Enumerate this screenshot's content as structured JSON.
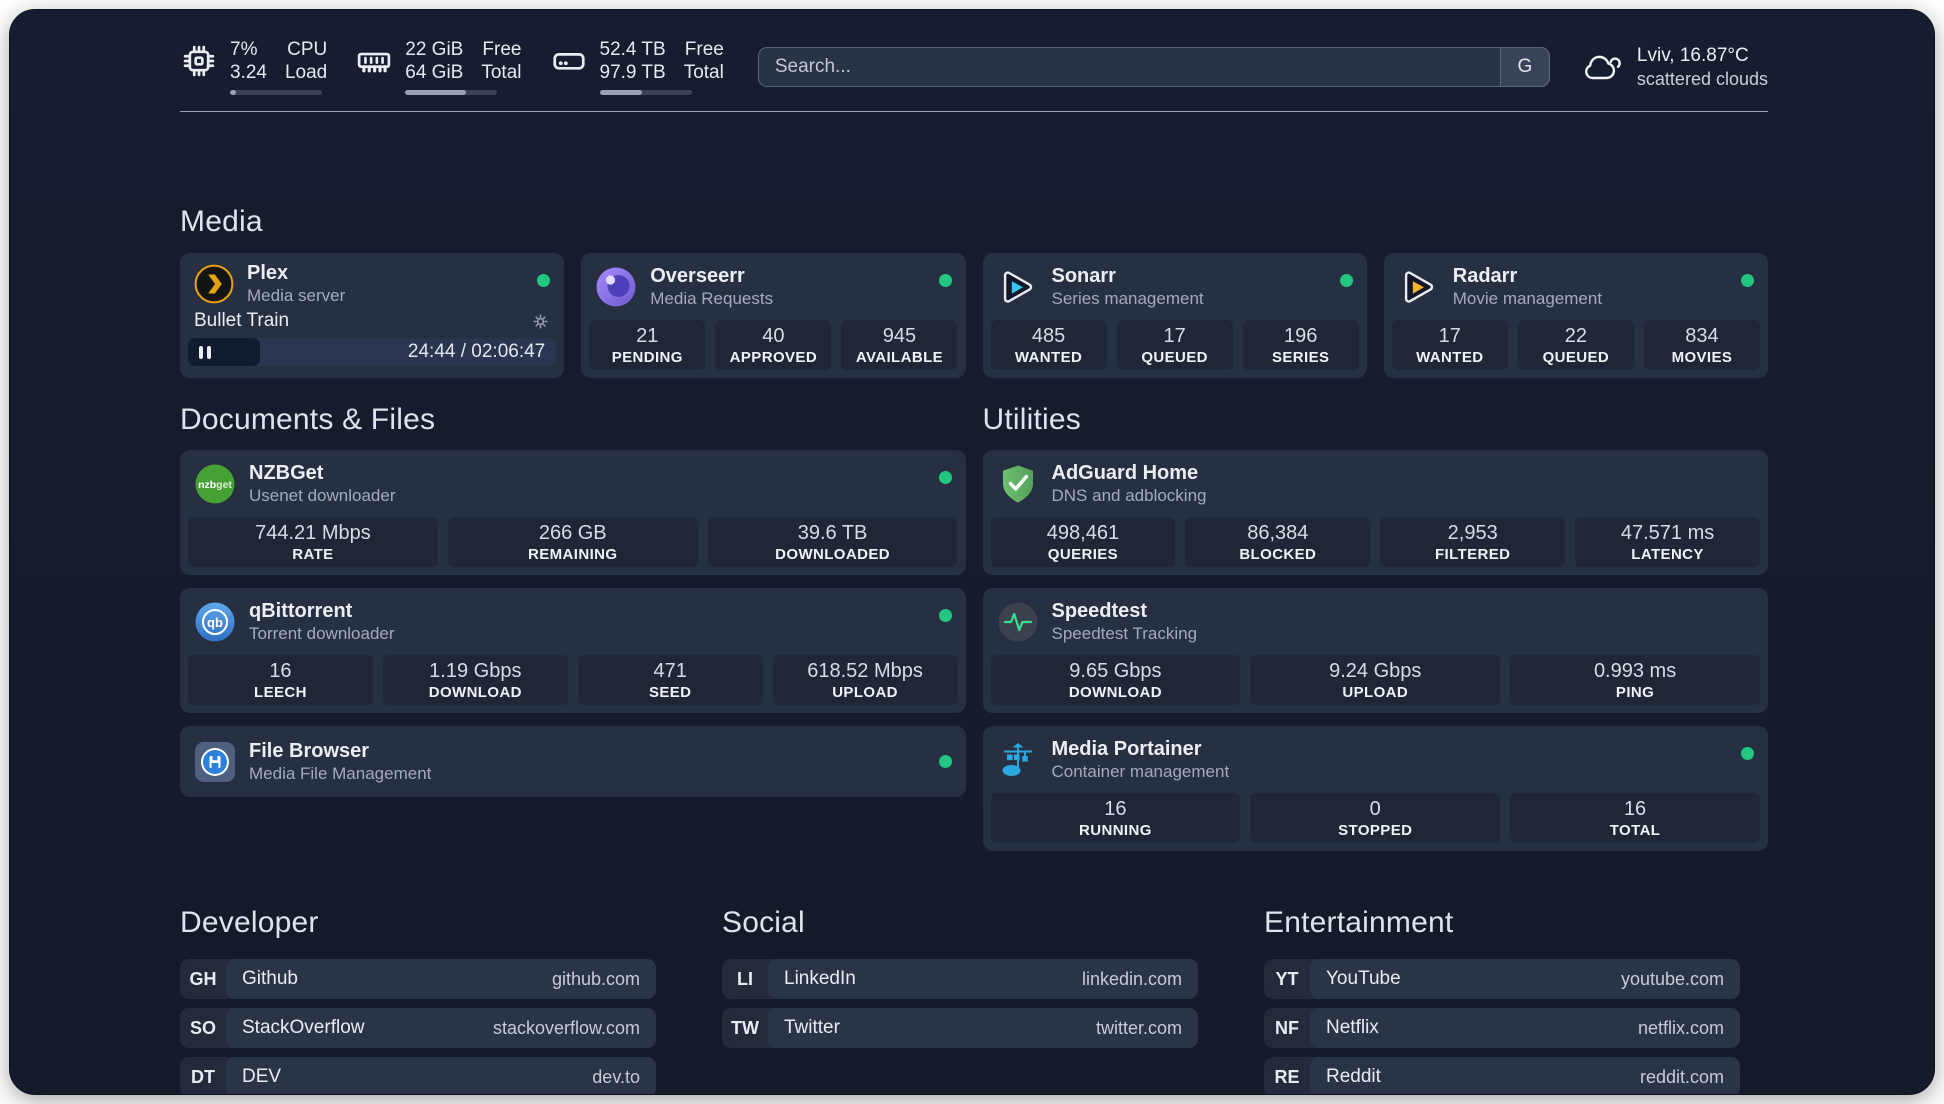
{
  "colors": {
    "page_background": "#151B2B",
    "card_background": "#272F42",
    "stat_box_background": "#1F2636",
    "status_green": "#21C77F",
    "plex_gold": "#E5A00D",
    "sonarr_blue": "#38C6F4",
    "radarr_gold": "#F5B42C",
    "portainer_blue": "#2AA9E0",
    "speedtest_pulse_green": "#35E08E"
  },
  "header": {
    "resources": [
      {
        "icon": "cpu-icon",
        "value_top": "7%",
        "value_bottom": "3.24",
        "label_top": "CPU",
        "label_bottom": "Load",
        "progress_percent": 7
      },
      {
        "icon": "memory-icon",
        "value_top": "22 GiB",
        "value_bottom": "64 GiB",
        "label_top": "Free",
        "label_bottom": "Total",
        "progress_percent": 66
      },
      {
        "icon": "disk-icon",
        "value_top": "52.4 TB",
        "value_bottom": "97.9 TB",
        "label_top": "Free",
        "label_bottom": "Total",
        "progress_percent": 46
      }
    ],
    "search": {
      "placeholder": "Search...",
      "engine_button": "G"
    },
    "weather": {
      "line1": "Lviv, 16.87°C",
      "line2": "scattered clouds"
    }
  },
  "media": {
    "title": "Media",
    "plex": {
      "name": "Plex",
      "description": "Media server",
      "online": true,
      "now_playing": {
        "title": "Bullet Train",
        "time": "24:44 / 02:06:47",
        "progress_percent": 19.5
      }
    },
    "overseerr": {
      "name": "Overseerr",
      "description": "Media Requests",
      "online": true,
      "stats": [
        {
          "value": "21",
          "label": "PENDING"
        },
        {
          "value": "40",
          "label": "APPROVED"
        },
        {
          "value": "945",
          "label": "AVAILABLE"
        }
      ]
    },
    "sonarr": {
      "name": "Sonarr",
      "description": "Series management",
      "online": true,
      "stats": [
        {
          "value": "485",
          "label": "WANTED"
        },
        {
          "value": "17",
          "label": "QUEUED"
        },
        {
          "value": "196",
          "label": "SERIES"
        }
      ]
    },
    "radarr": {
      "name": "Radarr",
      "description": "Movie management",
      "online": true,
      "stats": [
        {
          "value": "17",
          "label": "WANTED"
        },
        {
          "value": "22",
          "label": "QUEUED"
        },
        {
          "value": "834",
          "label": "MOVIES"
        }
      ]
    }
  },
  "documents": {
    "title": "Documents & Files",
    "nzbget": {
      "name": "NZBGet",
      "description": "Usenet downloader",
      "online": true,
      "stats": [
        {
          "value": "744.21 Mbps",
          "label": "RATE"
        },
        {
          "value": "266 GB",
          "label": "REMAINING"
        },
        {
          "value": "39.6 TB",
          "label": "DOWNLOADED"
        }
      ]
    },
    "qbittorrent": {
      "name": "qBittorrent",
      "description": "Torrent downloader",
      "online": true,
      "stats": [
        {
          "value": "16",
          "label": "LEECH"
        },
        {
          "value": "1.19 Gbps",
          "label": "DOWNLOAD"
        },
        {
          "value": "471",
          "label": "SEED"
        },
        {
          "value": "618.52 Mbps",
          "label": "UPLOAD"
        }
      ]
    },
    "filebrowser": {
      "name": "File Browser",
      "description": "Media File Management",
      "online": true
    }
  },
  "utilities": {
    "title": "Utilities",
    "adguard": {
      "name": "AdGuard Home",
      "description": "DNS and adblocking",
      "stats": [
        {
          "value": "498,461",
          "label": "QUERIES"
        },
        {
          "value": "86,384",
          "label": "BLOCKED"
        },
        {
          "value": "2,953",
          "label": "FILTERED"
        },
        {
          "value": "47.571 ms",
          "label": "LATENCY"
        }
      ]
    },
    "speedtest": {
      "name": "Speedtest",
      "description": "Speedtest Tracking",
      "stats": [
        {
          "value": "9.65 Gbps",
          "label": "DOWNLOAD"
        },
        {
          "value": "9.24 Gbps",
          "label": "UPLOAD"
        },
        {
          "value": "0.993 ms",
          "label": "PING"
        }
      ]
    },
    "portainer": {
      "name": "Media Portainer",
      "description": "Container management",
      "online": true,
      "stats": [
        {
          "value": "16",
          "label": "RUNNING"
        },
        {
          "value": "0",
          "label": "STOPPED"
        },
        {
          "value": "16",
          "label": "TOTAL"
        }
      ]
    }
  },
  "bookmarks": [
    {
      "title": "Developer",
      "links": [
        {
          "abbr": "GH",
          "name": "Github",
          "domain": "github.com"
        },
        {
          "abbr": "SO",
          "name": "StackOverflow",
          "domain": "stackoverflow.com"
        },
        {
          "abbr": "DT",
          "name": "DEV",
          "domain": "dev.to"
        }
      ]
    },
    {
      "title": "Social",
      "links": [
        {
          "abbr": "LI",
          "name": "LinkedIn",
          "domain": "linkedin.com"
        },
        {
          "abbr": "TW",
          "name": "Twitter",
          "domain": "twitter.com"
        }
      ]
    },
    {
      "title": "Entertainment",
      "links": [
        {
          "abbr": "YT",
          "name": "YouTube",
          "domain": "youtube.com"
        },
        {
          "abbr": "NF",
          "name": "Netflix",
          "domain": "netflix.com"
        },
        {
          "abbr": "RE",
          "name": "Reddit",
          "domain": "reddit.com"
        }
      ]
    }
  ]
}
